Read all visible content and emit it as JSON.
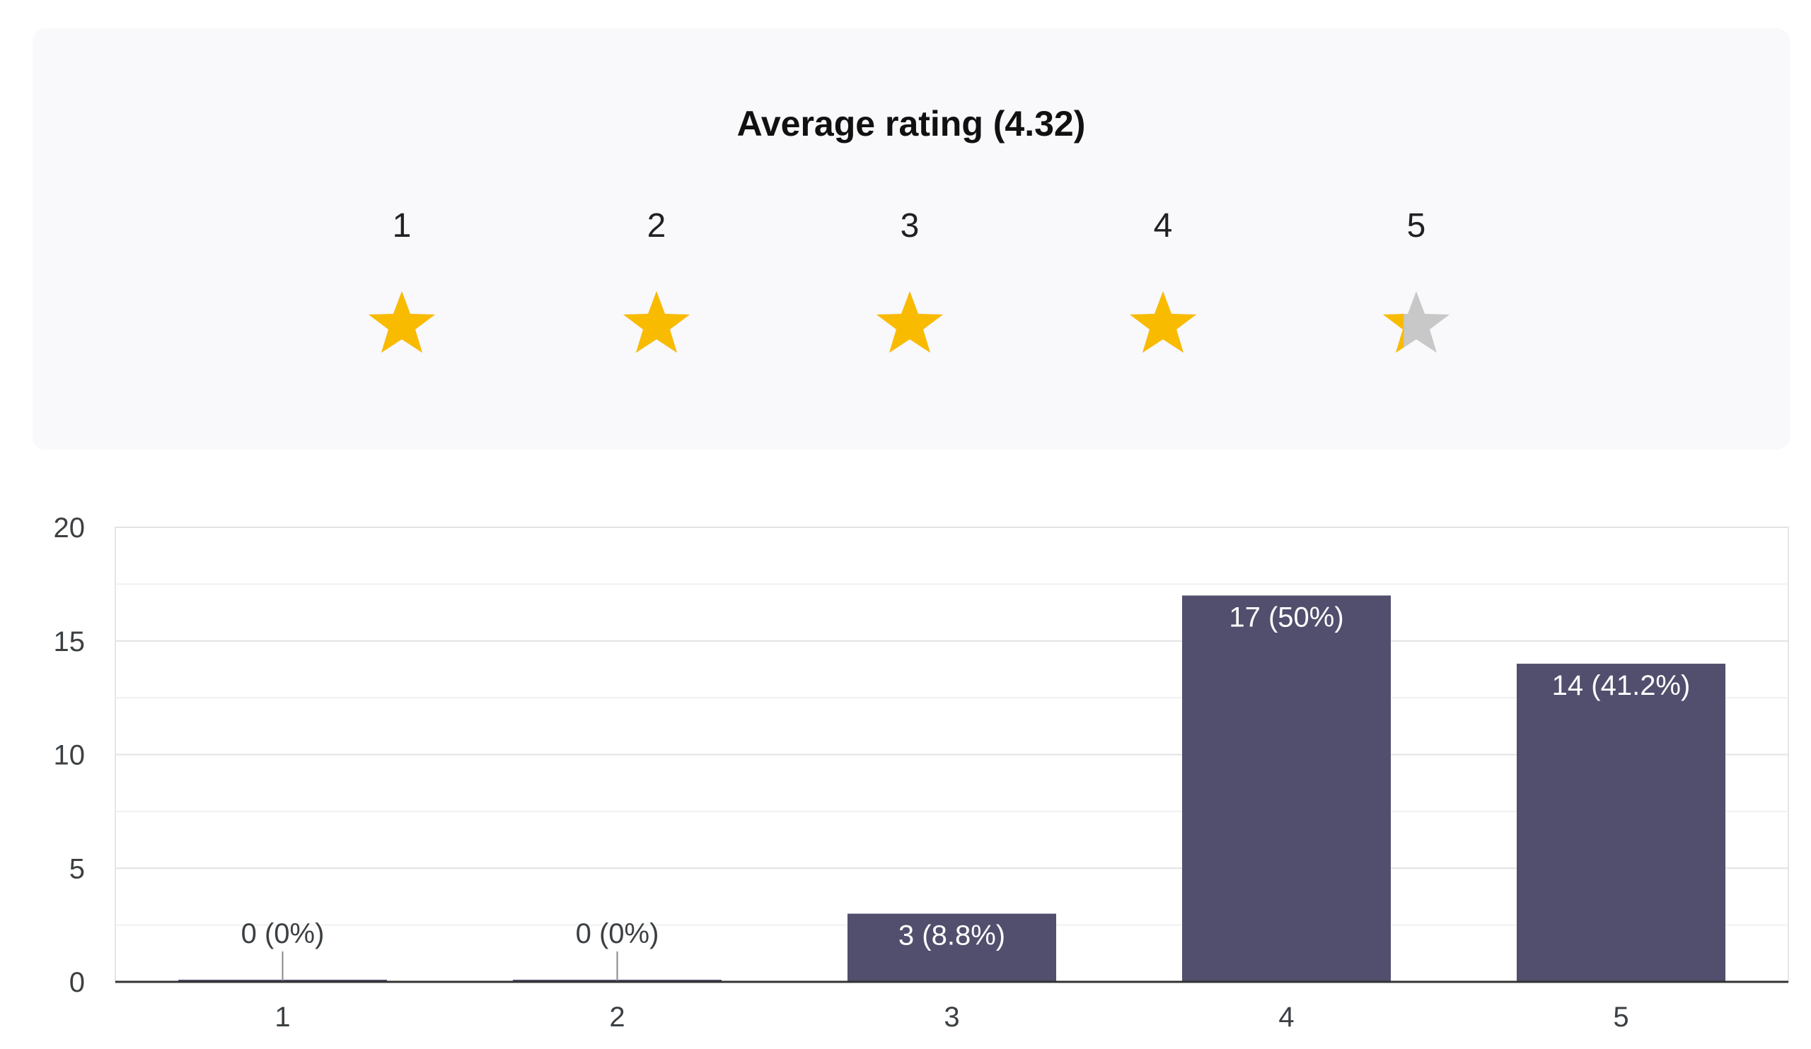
{
  "rating": {
    "title": "Average rating (4.32)",
    "average": 4.32,
    "stars": [
      {
        "label": "1",
        "fill": 1
      },
      {
        "label": "2",
        "fill": 1
      },
      {
        "label": "3",
        "fill": 1
      },
      {
        "label": "4",
        "fill": 1
      },
      {
        "label": "5",
        "fill": 0.32
      }
    ],
    "star_color": "#f9bb00",
    "star_empty_color": "#c8c8c8"
  },
  "chart_data": {
    "type": "bar",
    "categories": [
      "1",
      "2",
      "3",
      "4",
      "5"
    ],
    "values": [
      0,
      0,
      3,
      17,
      14
    ],
    "labels": [
      "0 (0%)",
      "0 (0%)",
      "3 (8.8%)",
      "17 (50%)",
      "14 (41.2%)"
    ],
    "ylim": [
      0,
      20
    ],
    "yticks": [
      "0",
      "5",
      "10",
      "15",
      "20"
    ],
    "ytick_values": [
      0,
      5,
      10,
      15,
      20
    ],
    "minor_grid_values": [
      2.5,
      7.5,
      12.5,
      17.5
    ],
    "grid": true,
    "bar_color": "#514f6d",
    "xlabel": "",
    "ylabel": ""
  }
}
